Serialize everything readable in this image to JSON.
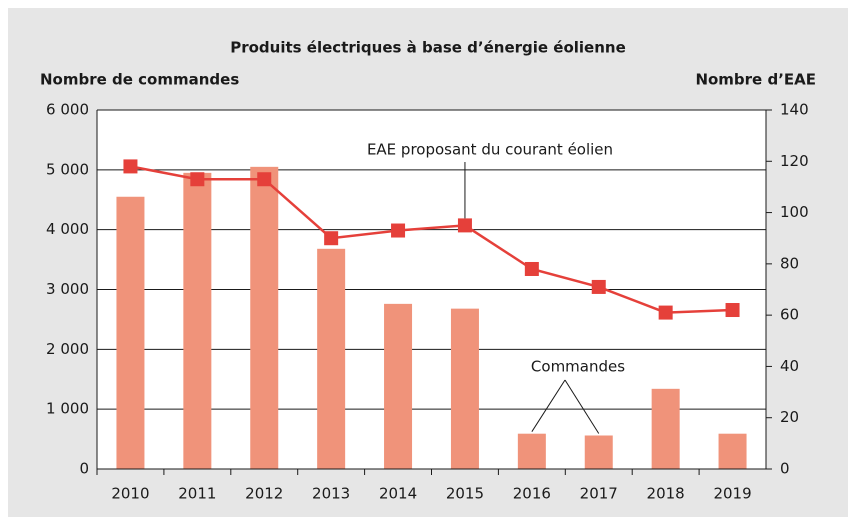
{
  "chart_data": {
    "type": "bar",
    "title": "Produits électriques à base d’énergie éolienne",
    "y_label": "Nombre de commandes",
    "y2_label": "Nombre d’EAE",
    "categories": [
      "2010",
      "2011",
      "2012",
      "2013",
      "2014",
      "2015",
      "2016",
      "2017",
      "2018",
      "2019"
    ],
    "series": [
      {
        "name": "Commandes",
        "type": "bar",
        "color": "#f0937a",
        "values": [
          4550,
          4950,
          5050,
          3680,
          2760,
          2680,
          590,
          560,
          1340,
          590
        ]
      },
      {
        "name": "EAE proposant du courant éolien",
        "type": "line",
        "axis": "y2",
        "color": "#e5403a",
        "values": [
          118,
          113,
          113,
          90,
          93,
          95,
          78,
          71,
          61,
          62
        ]
      }
    ],
    "ylim": [
      0,
      6000
    ],
    "yticks": [
      0,
      {
        "value": 1000,
        "label": "1 000"
      },
      {
        "value": 2000,
        "label": "2 000"
      },
      {
        "value": 3000,
        "label": "3 000"
      },
      {
        "value": 4000,
        "label": "4 000"
      },
      {
        "value": 5000,
        "label": "5 000"
      },
      {
        "value": 6000,
        "label": "6 000"
      }
    ],
    "y2lim": [
      0,
      140
    ],
    "y2ticks": [
      0,
      20,
      40,
      60,
      80,
      100,
      120,
      140
    ],
    "grid": true
  }
}
